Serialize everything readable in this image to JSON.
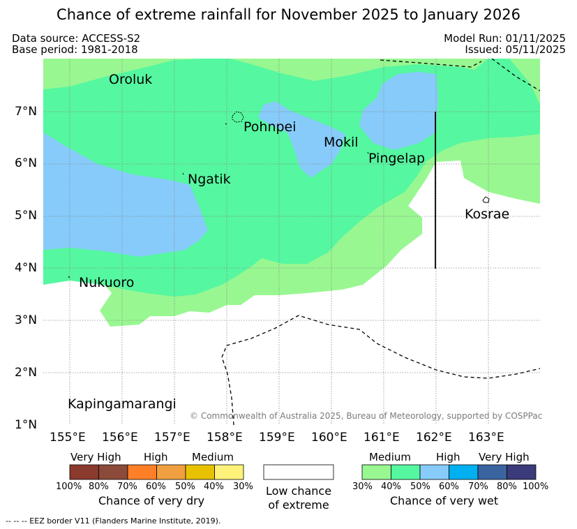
{
  "title": "Chance of extreme rainfall for November 2025 to January 2026",
  "meta": {
    "data_source": "Data source: ACCESS-S2",
    "base_period": "Base period: 1981-2018",
    "model_run": "Model Run: 01/11/2025",
    "issued": "Issued: 05/11/2025"
  },
  "map": {
    "lon_ticks": [
      "155°E",
      "156°E",
      "157°E",
      "158°E",
      "159°E",
      "160°E",
      "161°E",
      "162°E",
      "163°E"
    ],
    "lat_ticks": [
      "1°N",
      "2°N",
      "3°N",
      "4°N",
      "5°N",
      "6°N",
      "7°N"
    ],
    "places": {
      "oroluk": "Oroluk",
      "pohnpei": "Pohnpei",
      "mokil": "Mokil",
      "pingelap": "Pingelap",
      "ngatik": "Ngatik",
      "kosrae": "Kosrae",
      "nukuoro": "Nukuoro",
      "kapingamarangi": "Kapingamarangi"
    },
    "copyright": "© Commonwealth of Australia 2025, Bureau of Meteorology, supported by COSPPac"
  },
  "legend": {
    "dry": {
      "categories": [
        "Very High",
        "High",
        "Medium"
      ],
      "colors": [
        "#8b3a2e",
        "#8b4a3a",
        "#ff7f27",
        "#f0a040",
        "#e8c200",
        "#fff27a"
      ],
      "ticks": [
        "100%",
        "80%",
        "70%",
        "60%",
        "50%",
        "40%",
        "30%"
      ],
      "caption": "Chance of very dry"
    },
    "neutral": {
      "caption_line1": "Low chance",
      "caption_line2": "of extreme"
    },
    "wet": {
      "categories": [
        "Medium",
        "High",
        "Very High"
      ],
      "colors": [
        "#98f791",
        "#55f7a0",
        "#87cbfa",
        "#00b0f0",
        "#3a64a0",
        "#3b3a7a"
      ],
      "ticks": [
        "30%",
        "40%",
        "50%",
        "60%",
        "70%",
        "80%",
        "100%"
      ],
      "caption": "Chance of very wet"
    }
  },
  "footnote": "--  --  -- EEZ border V11 (Flanders Marine Institute, 2019)."
}
